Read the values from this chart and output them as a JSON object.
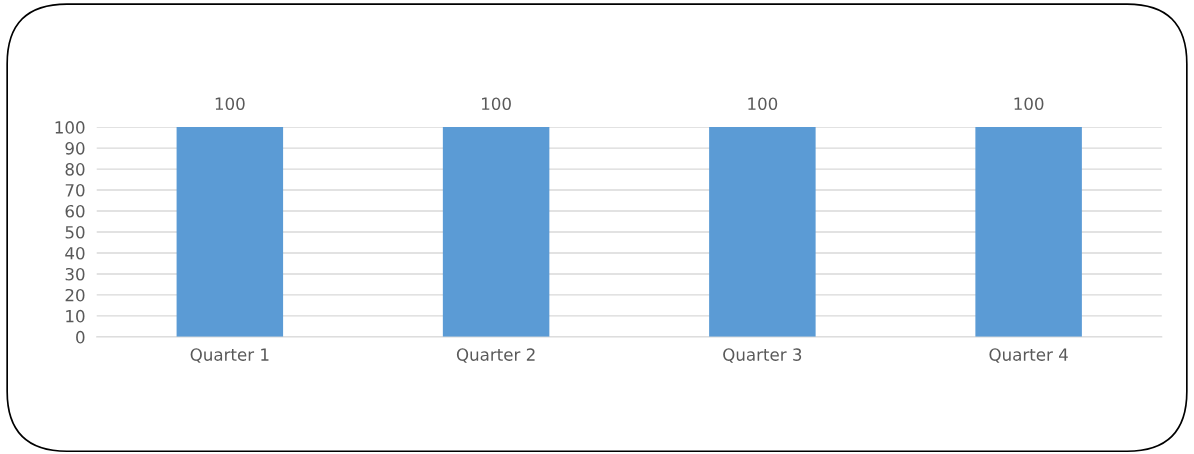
{
  "chart_data": {
    "type": "bar",
    "categories": [
      "Quarter 1",
      "Quarter 2",
      "Quarter 3",
      "Quarter 4"
    ],
    "values": [
      100,
      100,
      100,
      100
    ],
    "color": "#5b9bd5",
    "ylim": [
      0,
      100
    ],
    "yticks": [
      0,
      10,
      20,
      30,
      40,
      50,
      60,
      70,
      80,
      90,
      100
    ],
    "grid": "y",
    "data_labels": true,
    "legend": false
  }
}
